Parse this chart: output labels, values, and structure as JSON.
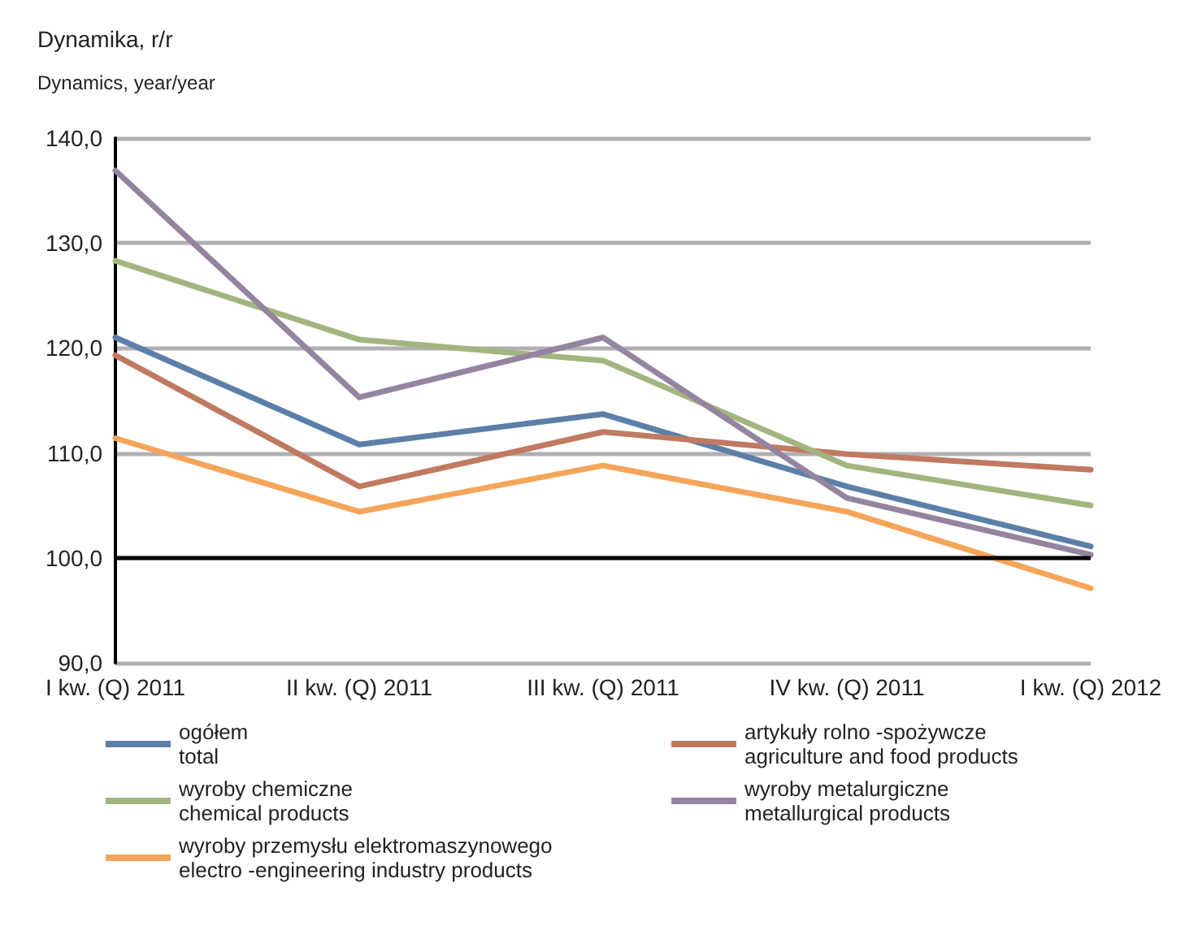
{
  "chart_data": {
    "type": "line",
    "title": "Dynamika, r/r",
    "subtitle": "Dynamics, year/year",
    "categories": [
      "I kw. (Q) 2011",
      "II kw. (Q) 2011",
      "III kw. (Q) 2011",
      "IV kw. (Q) 2011",
      "I kw. (Q) 2012"
    ],
    "series": [
      {
        "name": "ogółem\ntotal",
        "color": "#5b7fa8",
        "values": [
          121.0,
          110.8,
          113.7,
          106.8,
          101.1
        ]
      },
      {
        "name": "artykuły rolno -spożywcze\nagriculture and food products",
        "color": "#c07a62",
        "values": [
          119.3,
          106.8,
          112.0,
          109.9,
          108.4
        ]
      },
      {
        "name": "wyroby chemiczne\nchemical products",
        "color": "#a3b57f",
        "values": [
          128.3,
          120.8,
          118.8,
          108.8,
          105.0
        ]
      },
      {
        "name": "wyroby metalurgiczne\nmetallurgical products",
        "color": "#9584a0",
        "values": [
          136.9,
          115.3,
          121.0,
          105.7,
          100.3
        ]
      },
      {
        "name": "wyroby przemysłu elektromaszynowego\nelectro -engineering industry products",
        "color": "#f5a55a",
        "values": [
          111.4,
          104.4,
          108.8,
          104.4,
          97.1
        ]
      }
    ],
    "ylim": [
      90,
      140
    ],
    "yticks": [
      {
        "value": 90,
        "label": "90,0"
      },
      {
        "value": 100,
        "label": "100,0"
      },
      {
        "value": 110,
        "label": "110,0"
      },
      {
        "value": 120,
        "label": "120,0"
      },
      {
        "value": 130,
        "label": "130,0"
      },
      {
        "value": 140,
        "label": "140,0"
      }
    ],
    "ref_lines": [
      {
        "axis": "y",
        "value": 100,
        "color": "#000000"
      }
    ],
    "grid": "y",
    "legend": "bottom",
    "marker": "none",
    "line_style": "solid"
  }
}
